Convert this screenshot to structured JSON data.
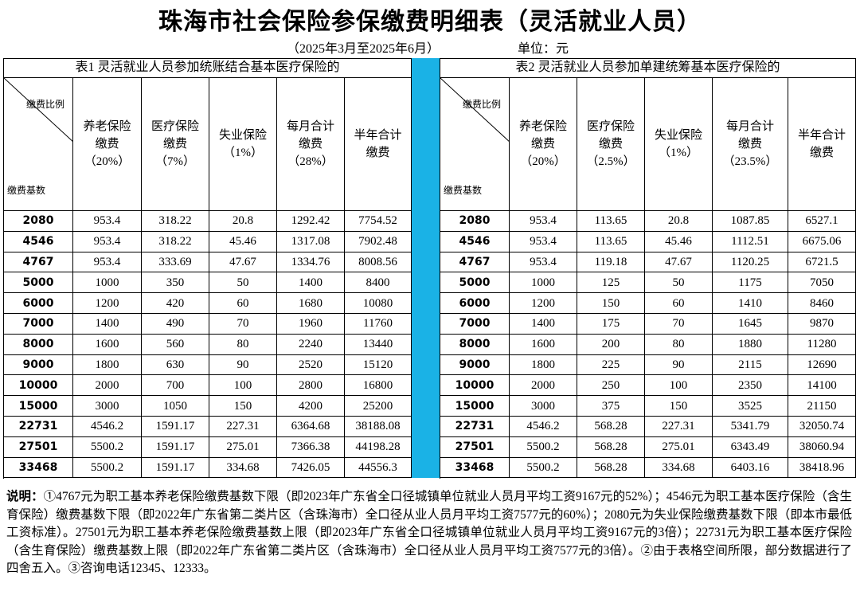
{
  "title": "珠海市社会保险参保缴费明细表（灵活就业人员）",
  "subtitle": "（2025年3月至2025年6月）",
  "unit": "单位：元",
  "tables": [
    {
      "caption": "表1  灵活就业人员参加统账结合基本医疗保险的",
      "corner_top": "缴费比例",
      "corner_bottom": "缴费基数",
      "headers": [
        [
          "养老保险",
          "缴费",
          "（20%）"
        ],
        [
          "医疗保险",
          "缴费",
          "（7%）"
        ],
        [
          "失业保险",
          "（1%）"
        ],
        [
          "每月合计",
          "缴费",
          "（28%）"
        ],
        [
          "半年合计",
          "缴费"
        ]
      ],
      "rows": [
        [
          2080,
          953.4,
          318.22,
          20.8,
          1292.42,
          7754.52
        ],
        [
          4546,
          953.4,
          318.22,
          45.46,
          1317.08,
          7902.48
        ],
        [
          4767,
          953.4,
          333.69,
          47.67,
          1334.76,
          8008.56
        ],
        [
          5000,
          1000,
          350,
          50,
          1400,
          8400
        ],
        [
          6000,
          1200,
          420,
          60,
          1680,
          10080
        ],
        [
          7000,
          1400,
          490,
          70,
          1960,
          11760
        ],
        [
          8000,
          1600,
          560,
          80,
          2240,
          13440
        ],
        [
          9000,
          1800,
          630,
          90,
          2520,
          15120
        ],
        [
          10000,
          2000,
          700,
          100,
          2800,
          16800
        ],
        [
          15000,
          3000,
          1050,
          150,
          4200,
          25200
        ],
        [
          22731,
          4546.2,
          1591.17,
          227.31,
          6364.68,
          38188.08
        ],
        [
          27501,
          5500.2,
          1591.17,
          275.01,
          7366.38,
          44198.28
        ],
        [
          33468,
          5500.2,
          1591.17,
          334.68,
          7426.05,
          44556.3
        ]
      ]
    },
    {
      "caption": "表2  灵活就业人员参加单建统筹基本医疗保险的",
      "corner_top": "缴费比例",
      "corner_bottom": "缴费基数",
      "headers": [
        [
          "养老保险",
          "缴费",
          "（20%）"
        ],
        [
          "医疗保险",
          "缴费",
          "（2.5%）"
        ],
        [
          "失业保险",
          "（1%）"
        ],
        [
          "每月合计",
          "缴费",
          "（23.5%）"
        ],
        [
          "半年合计",
          "缴费"
        ]
      ],
      "rows": [
        [
          2080,
          953.4,
          113.65,
          20.8,
          1087.85,
          6527.1
        ],
        [
          4546,
          953.4,
          113.65,
          45.46,
          1112.51,
          6675.06
        ],
        [
          4767,
          953.4,
          119.18,
          47.67,
          1120.25,
          6721.5
        ],
        [
          5000,
          1000,
          125,
          50,
          1175,
          7050
        ],
        [
          6000,
          1200,
          150,
          60,
          1410,
          8460
        ],
        [
          7000,
          1400,
          175,
          70,
          1645,
          9870
        ],
        [
          8000,
          1600,
          200,
          80,
          1880,
          11280
        ],
        [
          9000,
          1800,
          225,
          90,
          2115,
          12690
        ],
        [
          10000,
          2000,
          250,
          100,
          2350,
          14100
        ],
        [
          15000,
          3000,
          375,
          150,
          3525,
          21150
        ],
        [
          22731,
          4546.2,
          568.28,
          227.31,
          5341.79,
          32050.74
        ],
        [
          27501,
          5500.2,
          568.28,
          275.01,
          6343.49,
          38060.94
        ],
        [
          33468,
          5500.2,
          568.28,
          334.68,
          6403.16,
          38418.96
        ]
      ]
    }
  ],
  "note": {
    "label": "说明：",
    "text": "①4767元为职工基本养老保险缴费基数下限（即2023年广东省全口径城镇单位就业人员月平均工资9167元的52%）；4546元为职工基本医疗保险（含生育保险）缴费基数下限（即2022年广东省第二类片区（含珠海市）全口径从业人员月平均工资7577元的60%）；2080元为失业保险缴费基数下限（即本市最低工资标准）。27501元为职工基本养老保险缴费基数上限（即2023年广东省全口径城镇单位就业人员月平均工资9167元的3倍）；22731元为职工基本医疗保险（含生育保险）缴费基数上限（即2022年广东省第二类片区（含珠海市）全口径从业人员月平均工资7577元的3倍）。②由于表格空间所限，部分数据进行了四舍五入。③咨询电话12345、12333。"
  }
}
